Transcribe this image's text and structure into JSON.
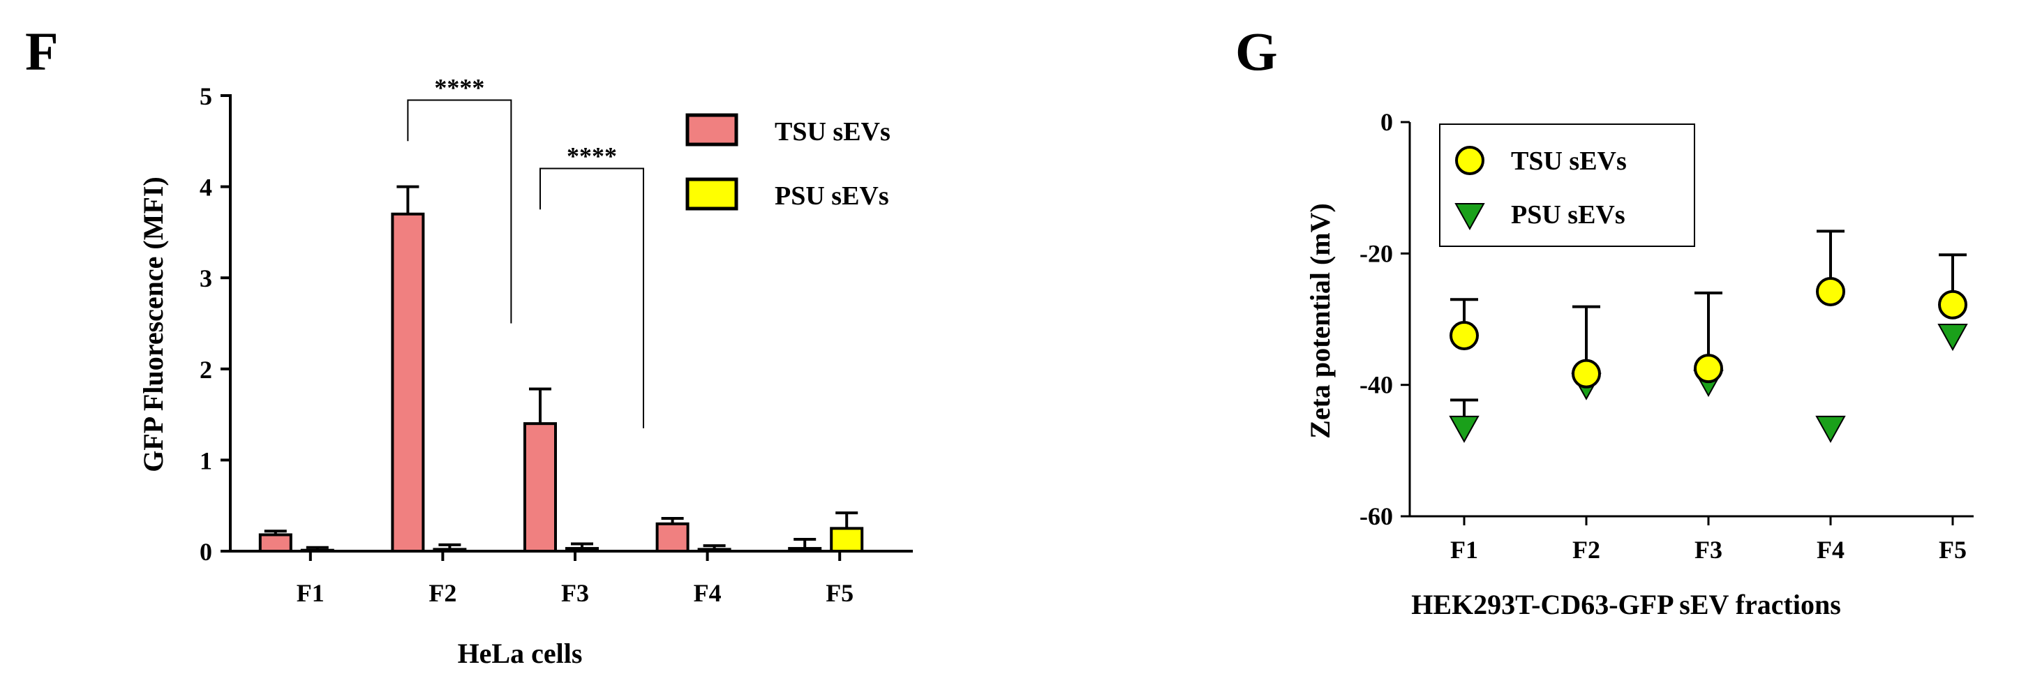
{
  "chart_data": [
    {
      "panel": "F",
      "type": "bar",
      "categories": [
        "F1",
        "F2",
        "F3",
        "F4",
        "F5"
      ],
      "xlabel": "HeLa cells",
      "ylabel": "GFP Fluorescence (MFI)",
      "ylim": [
        0,
        5
      ],
      "yticks": [
        "0",
        "1",
        "2",
        "3",
        "4",
        "5"
      ],
      "series": [
        {
          "name": "TSU sEVs",
          "color": "#f08080",
          "values": [
            0.18,
            3.7,
            1.4,
            0.3,
            0.03
          ],
          "errors": [
            0.04,
            0.3,
            0.38,
            0.06,
            0.1
          ]
        },
        {
          "name": "PSU sEVs",
          "color": "#ffff00",
          "values": [
            0.01,
            0.02,
            0.03,
            0.02,
            0.25
          ],
          "errors": [
            0.03,
            0.05,
            0.05,
            0.04,
            0.17
          ]
        }
      ],
      "annotations": [
        {
          "text": "****",
          "category": "F2",
          "from_y": 4.95,
          "to_y": 2.5
        },
        {
          "text": "****",
          "category": "F3",
          "from_y": 4.2,
          "to_y": 1.35
        }
      ]
    },
    {
      "panel": "G",
      "type": "scatter",
      "categories": [
        "F1",
        "F2",
        "F3",
        "F4",
        "F5"
      ],
      "xlabel": "HEK293T-CD63-GFP sEV fractions",
      "ylabel": "Zeta potential (mV)",
      "ylim": [
        -60,
        0
      ],
      "yticks": [
        "0",
        "-20",
        "-40",
        "-60"
      ],
      "series": [
        {
          "name": "TSU sEVs",
          "marker": "circle",
          "color": "#ffff00",
          "values": [
            -32.5,
            -38.3,
            -37.5,
            -25.8,
            -27.8
          ],
          "errors": [
            5.5,
            10.2,
            11.5,
            9.2,
            7.6
          ]
        },
        {
          "name": "PSU sEVs",
          "marker": "triangle-down",
          "color": "#1aa01a",
          "values": [
            -46.5,
            -40.0,
            -39.5,
            -46.5,
            -32.5
          ],
          "errors": [
            4.2,
            0,
            0,
            0,
            0
          ]
        }
      ]
    }
  ],
  "panels": {
    "F": {
      "label": "F"
    },
    "G": {
      "label": "G"
    }
  }
}
